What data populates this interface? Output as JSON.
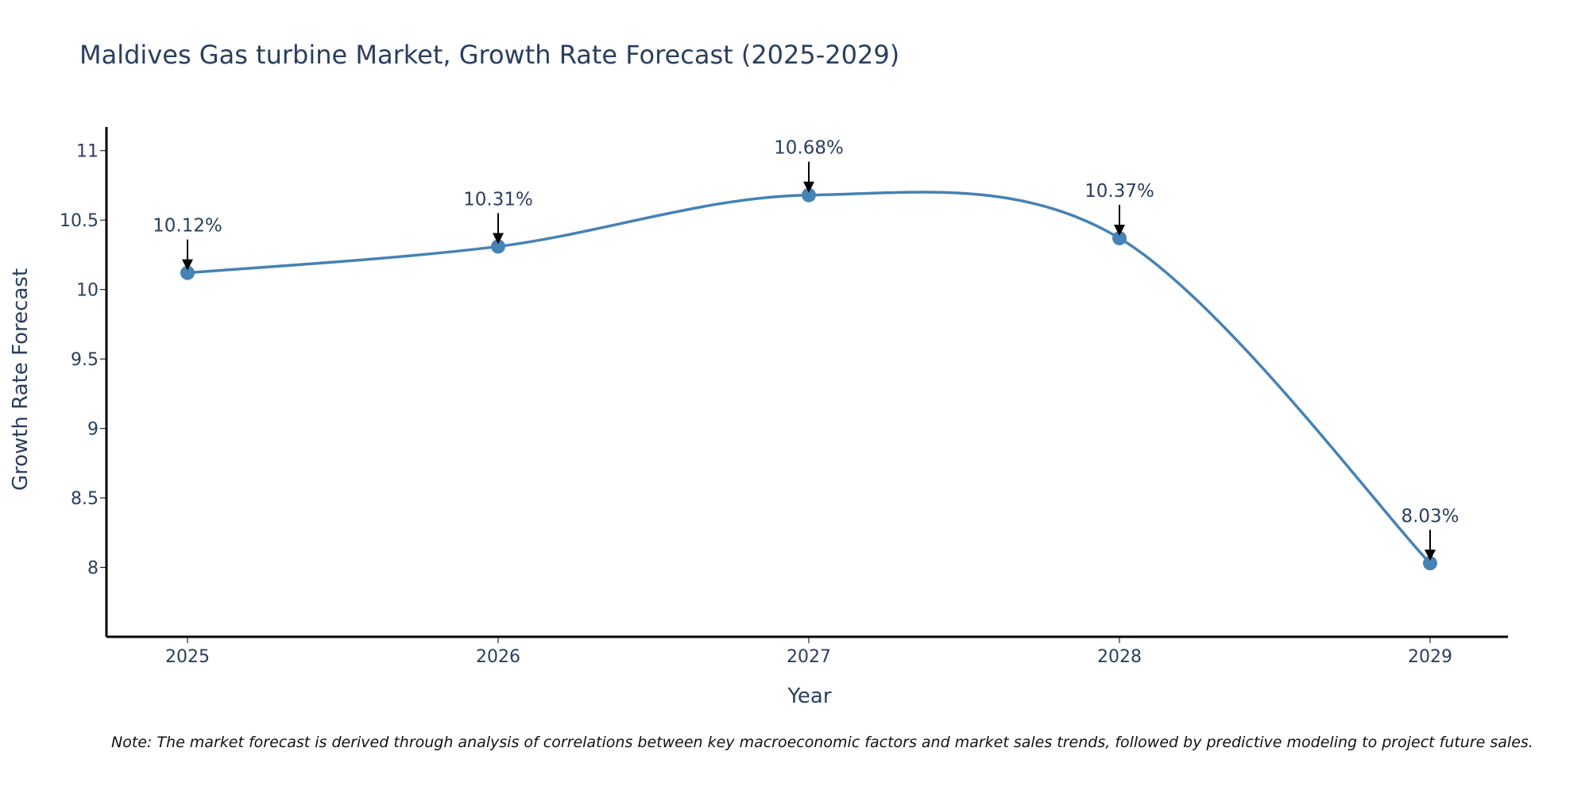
{
  "chart_data": {
    "type": "line",
    "title": "Maldives Gas turbine Market, Growth Rate Forecast (2025-2029)",
    "xlabel": "Year",
    "ylabel": "Growth Rate Forecast",
    "categories": [
      "2025",
      "2026",
      "2027",
      "2028",
      "2029"
    ],
    "series": [
      {
        "name": "Growth Rate Forecast",
        "values": [
          10.12,
          10.31,
          10.68,
          10.37,
          8.03
        ],
        "color": "#4682b4"
      }
    ],
    "data_labels": [
      "10.12%",
      "10.31%",
      "10.68%",
      "10.37%",
      "8.03%"
    ],
    "yticks": [
      8,
      8.5,
      9,
      9.5,
      10,
      10.5,
      11
    ],
    "ytick_labels": [
      "8",
      "8.5",
      "9",
      "9.5",
      "10",
      "10.5",
      "11"
    ],
    "ylim": [
      7.5,
      11.17
    ],
    "grid": false,
    "line_shape": "spline",
    "note": "Note: The market forecast is derived through analysis of correlations between key macroeconomic factors and market sales trends, followed by predictive modeling to project future sales."
  }
}
